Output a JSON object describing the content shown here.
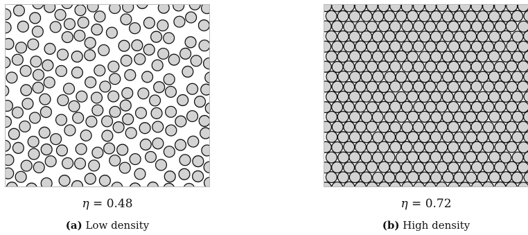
{
  "colors": {
    "disk_fill_a": "#ffffff",
    "disk_fill_b": "#d3d3d3",
    "disk_stroke": "#111111",
    "panel_border": "#b8b8b8"
  },
  "panels": [
    {
      "id": "a",
      "symbol": "η",
      "equals": "=",
      "eta": "0.48",
      "packing_fraction": 0.48,
      "label": "(a)",
      "title": "Low density",
      "disk_fill": "#d3d3d3",
      "arrangement": "random"
    },
    {
      "id": "b",
      "symbol": "η",
      "equals": "=",
      "eta": "0.72",
      "packing_fraction": 0.72,
      "label": "(b)",
      "title": "High density",
      "disk_fill": "#d3d3d3",
      "arrangement": "hexagonal-dense"
    }
  ]
}
